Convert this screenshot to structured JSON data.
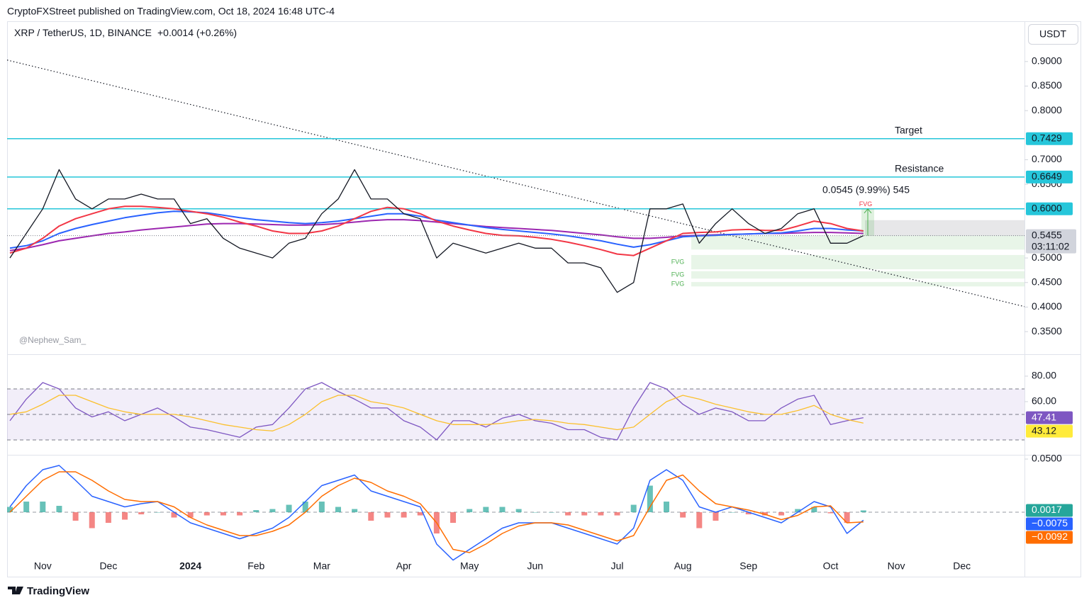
{
  "header": {
    "publisher": "CryptoFXStreet published on TradingView.com, Oct 18, 2024 16:48 UTC-4",
    "watermark": "@Nephew_Sam_"
  },
  "footer": {
    "brand": "TradingView"
  },
  "chart_data": {
    "type": "line",
    "title": "XRP / TetherUS, 1D, BINANCE",
    "change": "+0.0014 (+0.26%)",
    "currency": "USDT",
    "categories": [
      null,
      null,
      "Nov",
      null,
      null,
      null,
      "Dec",
      null,
      null,
      null,
      null,
      "2024",
      null,
      null,
      null,
      "Feb",
      null,
      null,
      null,
      "Mar",
      null,
      null,
      null,
      null,
      "Apr",
      null,
      null,
      null,
      "May",
      null,
      null,
      null,
      "Jun",
      null,
      null,
      null,
      null,
      "Jul",
      null,
      null,
      null,
      "Aug",
      null,
      null,
      null,
      "Sep",
      null,
      null,
      null,
      null,
      "Oct",
      null,
      null,
      null,
      "Nov",
      null,
      null,
      null,
      "Dec",
      null,
      null,
      null
    ],
    "ylim": [
      0.304,
      0.982
    ],
    "yticks": [
      {
        "value": 0.35,
        "label": "0.3500"
      },
      {
        "value": 0.4,
        "label": "0.4000"
      },
      {
        "value": 0.45,
        "label": "0.4500"
      },
      {
        "value": 0.5,
        "label": "0.5000"
      },
      {
        "value": 0.65,
        "label": "0.6500"
      },
      {
        "value": 0.7,
        "label": "0.7000"
      },
      {
        "value": 0.8,
        "label": "0.8000"
      },
      {
        "value": 0.85,
        "label": "0.8500"
      },
      {
        "value": 0.9,
        "label": "0.9000"
      }
    ],
    "series": [
      {
        "color": "#131722",
        "values": [
          0.5,
          0.55,
          0.6,
          0.68,
          0.62,
          0.6,
          0.62,
          0.62,
          0.63,
          0.62,
          0.62,
          0.57,
          0.58,
          0.54,
          0.52,
          0.51,
          0.5,
          0.53,
          0.54,
          0.59,
          0.62,
          0.68,
          0.62,
          0.62,
          0.59,
          0.58,
          0.5,
          0.53,
          0.52,
          0.51,
          0.52,
          0.53,
          0.52,
          0.52,
          0.49,
          0.49,
          0.48,
          0.43,
          0.45,
          0.6,
          0.6,
          0.61,
          0.53,
          0.57,
          0.6,
          0.57,
          0.55,
          0.56,
          0.59,
          0.6,
          0.53,
          0.53,
          0.5455,
          null,
          null,
          null,
          null,
          null,
          null,
          null,
          null,
          null
        ]
      },
      {
        "color": "#f23645",
        "values": [
          0.51,
          0.52,
          0.54,
          0.565,
          0.58,
          0.59,
          0.6,
          0.605,
          0.605,
          0.603,
          0.6,
          0.595,
          0.59,
          0.583,
          0.573,
          0.565,
          0.555,
          0.55,
          0.55,
          0.555,
          0.565,
          0.58,
          0.595,
          0.603,
          0.6,
          0.59,
          0.575,
          0.565,
          0.557,
          0.55,
          0.546,
          0.545,
          0.542,
          0.538,
          0.532,
          0.525,
          0.517,
          0.508,
          0.505,
          0.52,
          0.535,
          0.55,
          0.552,
          0.553,
          0.557,
          0.558,
          0.556,
          0.556,
          0.565,
          0.575,
          0.57,
          0.56,
          0.555,
          null,
          null,
          null,
          null,
          null,
          null,
          null,
          null,
          null
        ]
      },
      {
        "color": "#2962ff",
        "values": [
          0.52,
          0.525,
          0.535,
          0.55,
          0.56,
          0.568,
          0.575,
          0.582,
          0.587,
          0.592,
          0.595,
          0.594,
          0.592,
          0.587,
          0.582,
          0.578,
          0.575,
          0.572,
          0.57,
          0.572,
          0.575,
          0.58,
          0.585,
          0.59,
          0.59,
          0.585,
          0.577,
          0.572,
          0.567,
          0.562,
          0.558,
          0.555,
          0.552,
          0.549,
          0.545,
          0.54,
          0.535,
          0.528,
          0.522,
          0.527,
          0.535,
          0.543,
          0.545,
          0.546,
          0.548,
          0.549,
          0.55,
          0.551,
          0.555,
          0.56,
          0.56,
          0.557,
          0.555,
          null,
          null,
          null,
          null,
          null,
          null,
          null,
          null,
          null
        ]
      },
      {
        "color": "#9c27b0",
        "values": [
          0.515,
          0.52,
          0.527,
          0.535,
          0.54,
          0.545,
          0.55,
          0.553,
          0.557,
          0.56,
          0.563,
          0.566,
          0.569,
          0.57,
          0.57,
          0.569,
          0.568,
          0.567,
          0.567,
          0.568,
          0.57,
          0.573,
          0.576,
          0.578,
          0.578,
          0.576,
          0.573,
          0.57,
          0.567,
          0.564,
          0.562,
          0.56,
          0.558,
          0.556,
          0.553,
          0.55,
          0.547,
          0.543,
          0.54,
          0.54,
          0.542,
          0.545,
          0.546,
          0.547,
          0.548,
          0.549,
          0.55,
          0.55,
          0.551,
          0.552,
          0.552,
          0.551,
          0.55,
          null,
          null,
          null,
          null,
          null,
          null,
          null,
          null,
          null
        ]
      }
    ],
    "countdown": "03:11:02",
    "levels": [
      {
        "name": "Target",
        "value": 0.7429,
        "label": "0.7429"
      },
      {
        "name": "Resistance",
        "value": 0.6649,
        "label": "0.6649"
      },
      {
        "value": 0.6,
        "label": "0.6000"
      }
    ],
    "trendline": {
      "start": 0.903,
      "end": 0.401
    },
    "fvg": [
      {
        "top": 0.5455,
        "bottom": 0.517
      },
      {
        "label": "FVG",
        "top": 0.506,
        "bottom": 0.477
      },
      {
        "label": "FVG",
        "top": 0.473,
        "bottom": 0.458
      },
      {
        "label": "FVG",
        "top": 0.451,
        "bottom": 0.442
      }
    ],
    "fvg_bearish": {
      "label": "FVG",
      "top": 0.577,
      "bottom": 0.545,
      "color": "#f23645"
    },
    "measure": {
      "from": 0.5455,
      "to": 0.6,
      "label": "0.0545 (9.99%) 545"
    },
    "rsi": {
      "type": "line",
      "ylim": [
        18.3,
        97.2
      ],
      "yticks": [
        {
          "value": 60,
          "label": "60.00"
        },
        {
          "value": 80,
          "label": "80.00"
        }
      ],
      "bands": [
        70,
        50,
        30
      ],
      "series": [
        {
          "color": "#7e57c2",
          "tag_text": "#ffffff",
          "values": [
            45,
            62,
            75,
            70,
            55,
            48,
            52,
            45,
            50,
            55,
            48,
            40,
            38,
            35,
            32,
            40,
            42,
            55,
            70,
            75,
            68,
            62,
            55,
            55,
            45,
            40,
            30,
            45,
            45,
            40,
            47,
            50,
            45,
            43,
            38,
            38,
            32,
            30,
            55,
            75,
            70,
            58,
            50,
            55,
            52,
            45,
            45,
            55,
            62,
            65,
            42,
            45,
            47.41,
            null,
            null,
            null,
            null,
            null,
            null,
            null,
            null,
            null
          ]
        },
        {
          "color": "#fbc02d",
          "tag_color": "#ffeb3b",
          "tag_text": "#131722",
          "values": [
            50,
            52,
            58,
            65,
            65,
            60,
            55,
            52,
            50,
            50,
            50,
            48,
            45,
            42,
            40,
            38,
            37,
            42,
            50,
            60,
            65,
            65,
            60,
            58,
            55,
            50,
            45,
            42,
            42,
            42,
            43,
            45,
            46,
            45,
            43,
            42,
            40,
            38,
            40,
            50,
            60,
            65,
            62,
            58,
            55,
            52,
            50,
            50,
            53,
            57,
            50,
            46,
            43.12,
            null,
            null,
            null,
            null,
            null,
            null,
            null,
            null,
            null
          ]
        }
      ]
    },
    "macd": {
      "type": "line",
      "ylim": [
        -0.0413,
        0.054
      ],
      "yticks": [
        {
          "value": 0.05,
          "label": "0.0500"
        }
      ],
      "baseline": 0,
      "histogram": {
        "type": "bar",
        "positive": "#26a69a",
        "negative": "#ef5350",
        "values": [
          0.005,
          0.01,
          0.01,
          0.006,
          -0.008,
          -0.015,
          -0.01,
          -0.007,
          -0.002,
          0,
          -0.005,
          -0.005,
          -0.003,
          -0.003,
          -0.003,
          0.002,
          0.003,
          0.007,
          0.01,
          0.01,
          0.005,
          0.003,
          -0.008,
          -0.005,
          -0.005,
          -0.003,
          -0.02,
          -0.01,
          0.003,
          0.005,
          0.005,
          0.003,
          0,
          0,
          -0.003,
          -0.003,
          -0.003,
          -0.003,
          0.007,
          0.025,
          0.01,
          -0.005,
          -0.015,
          -0.008,
          0,
          -0.002,
          -0.003,
          -0.003,
          0.003,
          0.005,
          -0.001,
          -0.01,
          0.0017,
          null,
          null,
          null,
          null,
          null,
          null,
          null,
          null,
          null
        ]
      },
      "series": [
        {
          "color": "#2962ff",
          "tag_text": "#ffffff",
          "last_label": "−0.0075",
          "values": [
            0.005,
            0.025,
            0.04,
            0.044,
            0.03,
            0.015,
            0.01,
            0.005,
            0.008,
            0.01,
            0.0,
            -0.01,
            -0.015,
            -0.02,
            -0.025,
            -0.02,
            -0.015,
            -0.005,
            0.01,
            0.025,
            0.03,
            0.035,
            0.02,
            0.015,
            0.01,
            0.005,
            -0.03,
            -0.045,
            -0.035,
            -0.025,
            -0.015,
            -0.01,
            -0.01,
            -0.01,
            -0.015,
            -0.02,
            -0.025,
            -0.03,
            -0.015,
            0.03,
            0.04,
            0.03,
            0.005,
            0.0,
            0.005,
            0.0,
            -0.005,
            -0.01,
            0.0,
            0.01,
            0.005,
            -0.02,
            -0.0075,
            null,
            null,
            null,
            null,
            null,
            null,
            null,
            null,
            null
          ]
        },
        {
          "color": "#ff6d00",
          "tag_text": "#ffffff",
          "last_label": "−0.0092",
          "values": [
            0.0,
            0.015,
            0.03,
            0.038,
            0.038,
            0.03,
            0.02,
            0.012,
            0.01,
            0.01,
            0.005,
            -0.005,
            -0.012,
            -0.017,
            -0.022,
            -0.022,
            -0.018,
            -0.012,
            0.0,
            0.015,
            0.025,
            0.032,
            0.028,
            0.02,
            0.015,
            0.008,
            -0.01,
            -0.035,
            -0.038,
            -0.03,
            -0.02,
            -0.013,
            -0.01,
            -0.01,
            -0.012,
            -0.017,
            -0.022,
            -0.027,
            -0.022,
            0.005,
            0.03,
            0.035,
            0.02,
            0.008,
            0.005,
            0.002,
            -0.002,
            -0.007,
            -0.003,
            0.005,
            0.006,
            -0.01,
            -0.0092,
            null,
            null,
            null,
            null,
            null,
            null,
            null,
            null,
            null
          ]
        }
      ]
    }
  }
}
